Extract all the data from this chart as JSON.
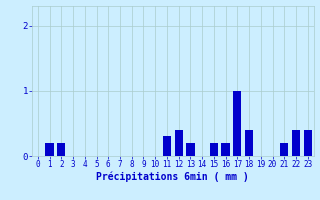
{
  "hours": [
    0,
    1,
    2,
    3,
    4,
    5,
    6,
    7,
    8,
    9,
    10,
    11,
    12,
    13,
    14,
    15,
    16,
    17,
    18,
    19,
    20,
    21,
    22,
    23
  ],
  "values": [
    0,
    0.2,
    0.2,
    0,
    0,
    0,
    0,
    0,
    0,
    0,
    0,
    0.3,
    0.4,
    0.2,
    0,
    0.2,
    0.2,
    1.0,
    0.4,
    0,
    0,
    0.2,
    0.4,
    0.4
  ],
  "bar_color": "#0000cc",
  "background_color": "#cceeff",
  "grid_color": "#aacccc",
  "axis_color": "#0000cc",
  "xlabel": "Précipitations 6min ( mm )",
  "xlabel_fontsize": 7,
  "tick_fontsize": 5.5,
  "ytick_fontsize": 6.5,
  "yticks": [
    0,
    1,
    2
  ],
  "ylim": [
    0,
    2.3
  ],
  "xlim": [
    -0.5,
    23.5
  ]
}
